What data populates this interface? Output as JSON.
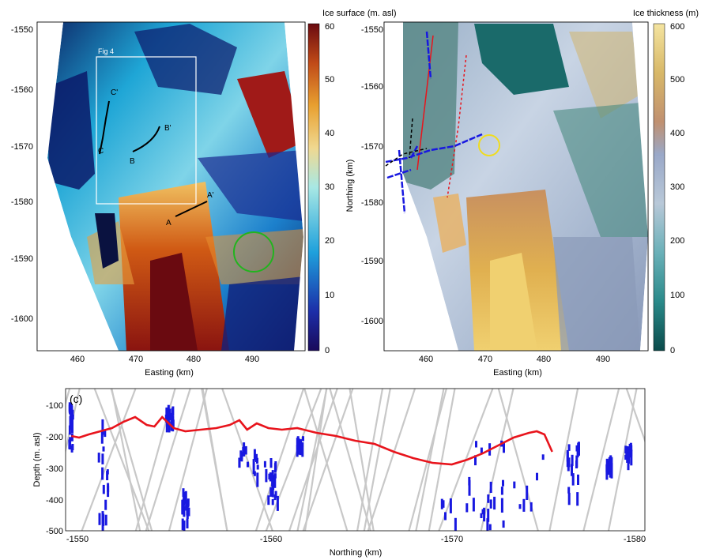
{
  "figure": {
    "panel_a": {
      "label": "(a)",
      "colorbar_label": "Ice surface (m. asl)",
      "colorbar_ticks": [
        "60",
        "50",
        "40",
        "30",
        "20",
        "10",
        "0"
      ],
      "xlabel": "Easting (km)",
      "x_ticks": [
        "460",
        "470",
        "480",
        "490"
      ],
      "y_ticks": [
        "-1550",
        "-1560",
        "-1570",
        "-1580",
        "-1590",
        "-1600"
      ],
      "inset_label": "Fig 4",
      "profile_labels": [
        "C'",
        "C",
        "B'",
        "B",
        "A'",
        "A"
      ]
    },
    "panel_b": {
      "label": "(b)",
      "colorbar_label": "Ice thickness (m)",
      "colorbar_ticks": [
        "600",
        "500",
        "400",
        "300",
        "200",
        "100",
        "0"
      ],
      "xlabel": "Easting (km)",
      "ylabel": "Northing (km)",
      "x_ticks": [
        "460",
        "470",
        "480",
        "490"
      ],
      "y_ticks": [
        "-1550",
        "-1560",
        "-1570",
        "-1580",
        "-1590",
        "-1600"
      ]
    },
    "panel_c": {
      "label": "(c)",
      "xlabel": "Northing (km)",
      "ylabel": "Depth (m. asl)",
      "x_ticks": [
        "-1550",
        "-1560",
        "-1570",
        "-1580"
      ],
      "y_ticks": [
        "-100",
        "-200",
        "-300",
        "-400",
        "-500"
      ]
    }
  },
  "colors": {
    "bed_red": "#e8141c",
    "radar_blue": "#1818e0",
    "gray_tracks": "#c8c8c8",
    "circle_green": "#22b41e",
    "circle_yellow": "#f0dc1e"
  },
  "chart_data": {
    "type": "line",
    "xlabel": "Northing (km)",
    "ylabel": "Depth (m. asl)",
    "xlim": [
      -1550,
      -1580
    ],
    "ylim": [
      -500,
      -50
    ],
    "series": [
      {
        "x": [
          -1550.3,
          -1550.7,
          -1551.2,
          -1551.8,
          -1552.4,
          -1553.0,
          -1553.6,
          -1554.2,
          -1554.6,
          -1555.0,
          -1555.6,
          -1556.2,
          -1557.0,
          -1557.8,
          -1558.5,
          -1559.0,
          -1559.4,
          -1559.9,
          -1560.5,
          -1561.2,
          -1562.0,
          -1563.0,
          -1564.0,
          -1565.0,
          -1566.0,
          -1567.0,
          -1568.0,
          -1569.0,
          -1570.0,
          -1570.8,
          -1571.6,
          -1572.4,
          -1573.2,
          -1574.0,
          -1574.4,
          -1574.8,
          -1575.2
        ],
        "y": [
          -200,
          -205,
          -195,
          -185,
          -175,
          -155,
          -140,
          -165,
          -170,
          -140,
          -175,
          -185,
          -180,
          -175,
          -165,
          -150,
          -180,
          -160,
          -175,
          -180,
          -175,
          -190,
          -200,
          -215,
          -225,
          -250,
          -270,
          -285,
          -290,
          -275,
          -255,
          -230,
          -205,
          -190,
          -185,
          -195,
          -250
        ]
      }
    ]
  }
}
